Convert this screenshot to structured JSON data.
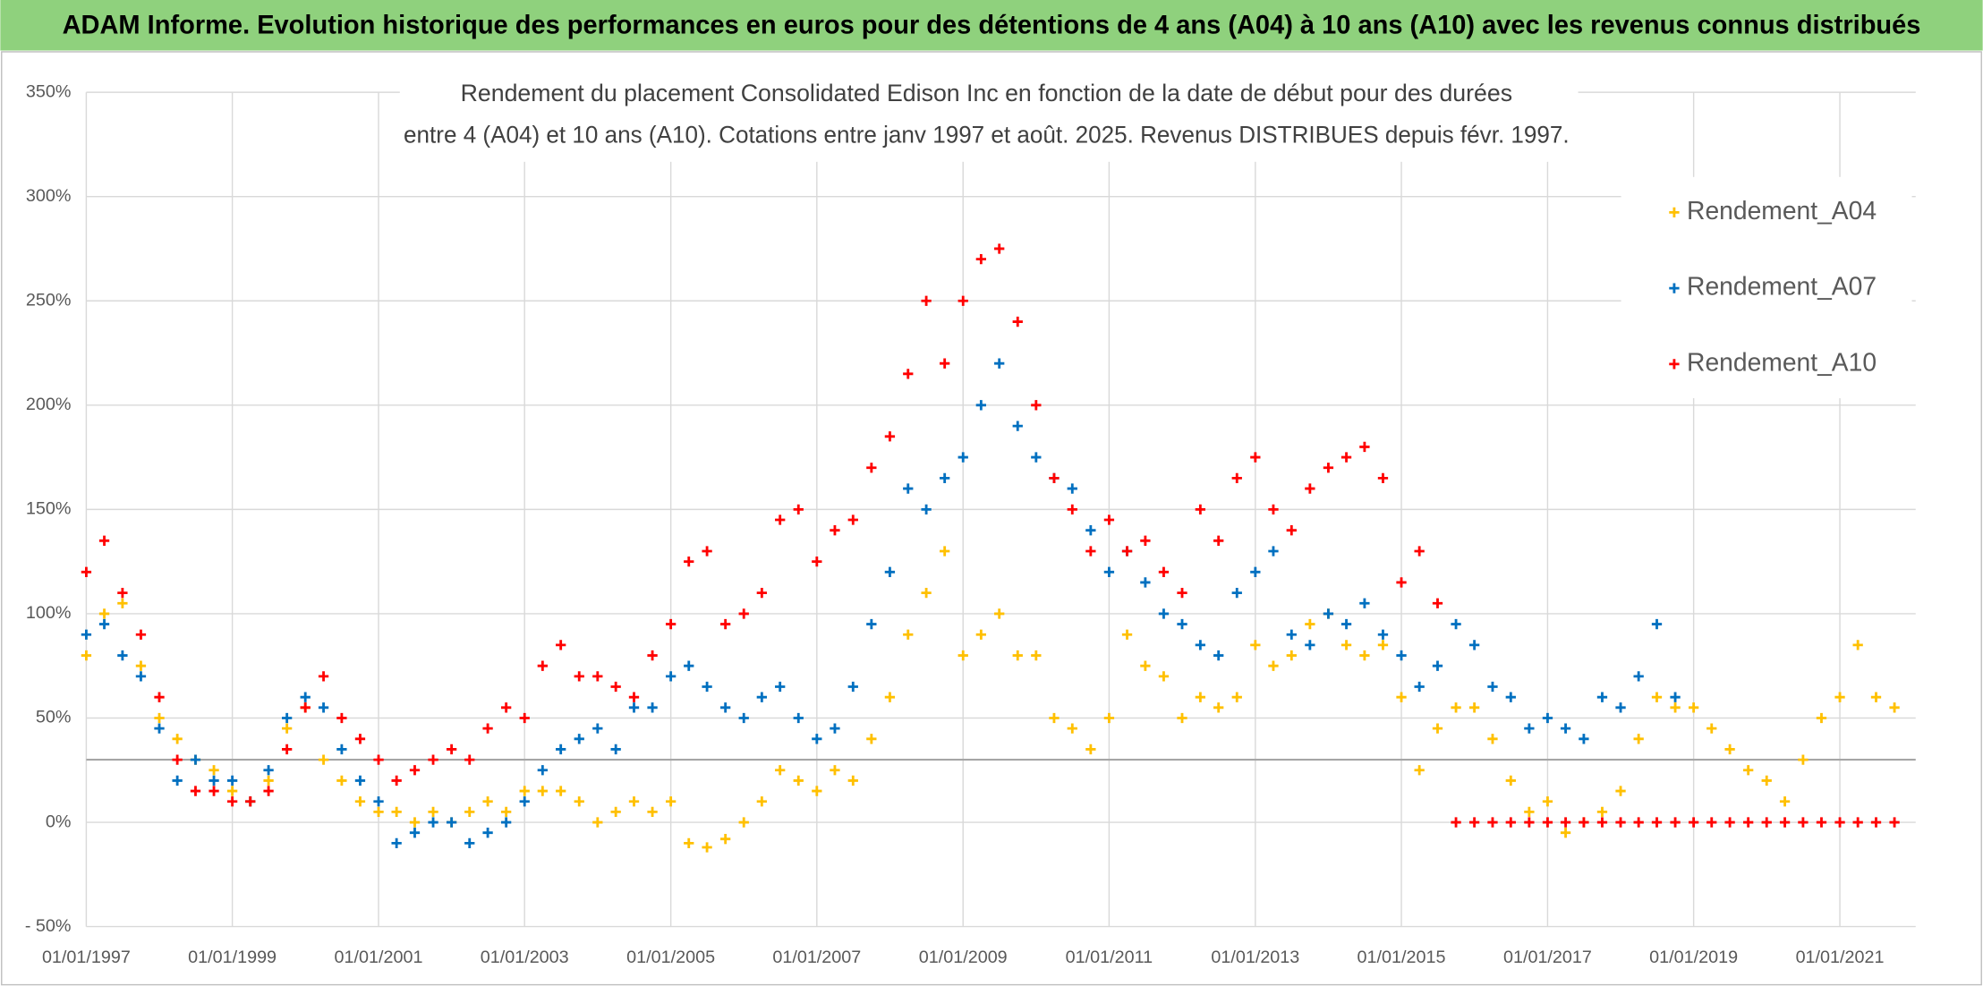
{
  "header": {
    "title": "ADAM Informe. Evolution historique des performances en euros pour des détentions de 4 ans (A04) à 10 ans (A10) avec les revenus connus distribués"
  },
  "chart_data": {
    "type": "scatter",
    "title": [
      "Rendement du placement Consolidated Edison Inc en fonction de la date de début pour des durées",
      "entre 4 (A04) et 10 ans (A10). Cotations entre janv 1997 et août. 2025. Revenus DISTRIBUES depuis févr. 1997."
    ],
    "x": [
      "1997-01-01",
      "1997-04-01",
      "1997-07-01",
      "1997-10-01",
      "1998-01-01",
      "1998-04-01",
      "1998-07-01",
      "1998-10-01",
      "1999-01-01",
      "1999-04-01",
      "1999-07-01",
      "1999-10-01",
      "2000-01-01",
      "2000-04-01",
      "2000-07-01",
      "2000-10-01",
      "2001-01-01",
      "2001-04-01",
      "2001-07-01",
      "2001-10-01",
      "2002-01-01",
      "2002-04-01",
      "2002-07-01",
      "2002-10-01",
      "2003-01-01",
      "2003-04-01",
      "2003-07-01",
      "2003-10-01",
      "2004-01-01",
      "2004-04-01",
      "2004-07-01",
      "2004-10-01",
      "2005-01-01",
      "2005-04-01",
      "2005-07-01",
      "2005-10-01",
      "2006-01-01",
      "2006-04-01",
      "2006-07-01",
      "2006-10-01",
      "2007-01-01",
      "2007-04-01",
      "2007-07-01",
      "2007-10-01",
      "2008-01-01",
      "2008-04-01",
      "2008-07-01",
      "2008-10-01",
      "2009-01-01",
      "2009-04-01",
      "2009-07-01",
      "2009-10-01",
      "2010-01-01",
      "2010-04-01",
      "2010-07-01",
      "2010-10-01",
      "2011-01-01",
      "2011-04-01",
      "2011-07-01",
      "2011-10-01",
      "2012-01-01",
      "2012-04-01",
      "2012-07-01",
      "2012-10-01",
      "2013-01-01",
      "2013-04-01",
      "2013-07-01",
      "2013-10-01",
      "2014-01-01",
      "2014-04-01",
      "2014-07-01",
      "2014-10-01",
      "2015-01-01",
      "2015-04-01",
      "2015-07-01",
      "2015-10-01",
      "2016-01-01",
      "2016-04-01",
      "2016-07-01",
      "2016-10-01",
      "2017-01-01",
      "2017-04-01",
      "2017-07-01",
      "2017-10-01",
      "2018-01-01",
      "2018-04-01",
      "2018-07-01",
      "2018-10-01",
      "2019-01-01",
      "2019-04-01",
      "2019-07-01",
      "2019-10-01",
      "2020-01-01",
      "2020-04-01",
      "2020-07-01",
      "2020-10-01",
      "2021-01-01",
      "2021-04-01",
      "2021-07-01",
      "2021-10-01"
    ],
    "series": [
      {
        "name": "Rendement_A04",
        "color": "#ffc000",
        "values": [
          80,
          100,
          105,
          75,
          50,
          40,
          30,
          25,
          15,
          10,
          20,
          45,
          55,
          30,
          20,
          10,
          5,
          5,
          0,
          5,
          0,
          5,
          10,
          5,
          15,
          15,
          15,
          10,
          0,
          5,
          10,
          5,
          10,
          -10,
          -12,
          -8,
          0,
          10,
          25,
          20,
          15,
          25,
          20,
          40,
          60,
          90,
          110,
          130,
          80,
          90,
          100,
          80,
          80,
          50,
          45,
          35,
          50,
          90,
          75,
          70,
          50,
          60,
          55,
          60,
          85,
          75,
          80,
          95,
          100,
          85,
          80,
          85,
          60,
          25,
          45,
          55,
          55,
          40,
          20,
          5,
          10,
          -5,
          0,
          5,
          15,
          40,
          60,
          55,
          55,
          45,
          35,
          25,
          20,
          10,
          30,
          50,
          60,
          85,
          60,
          55
        ]
      },
      {
        "name": "Rendement_A07",
        "color": "#0070c0",
        "values": [
          90,
          95,
          80,
          70,
          45,
          20,
          30,
          20,
          20,
          10,
          25,
          50,
          60,
          55,
          35,
          20,
          10,
          -10,
          -5,
          0,
          0,
          -10,
          -5,
          0,
          10,
          25,
          35,
          40,
          45,
          35,
          55,
          55,
          70,
          75,
          65,
          55,
          50,
          60,
          65,
          50,
          40,
          45,
          65,
          95,
          120,
          160,
          150,
          165,
          175,
          200,
          220,
          190,
          175,
          165,
          160,
          140,
          120,
          130,
          115,
          100,
          95,
          85,
          80,
          110,
          120,
          130,
          90,
          85,
          100,
          95,
          105,
          90,
          80,
          65,
          75,
          95,
          85,
          65,
          60,
          45,
          50,
          45,
          40,
          60,
          55,
          70,
          95,
          60,
          null,
          null,
          null,
          null,
          null,
          null,
          null,
          null,
          null,
          null,
          null,
          null
        ]
      },
      {
        "name": "Rendement_A10",
        "color": "#ff0000",
        "values": [
          120,
          135,
          110,
          90,
          60,
          30,
          15,
          15,
          10,
          10,
          15,
          35,
          55,
          70,
          50,
          40,
          30,
          20,
          25,
          30,
          35,
          30,
          45,
          55,
          50,
          75,
          85,
          70,
          70,
          65,
          60,
          80,
          95,
          125,
          130,
          95,
          100,
          110,
          145,
          150,
          125,
          140,
          145,
          170,
          185,
          215,
          250,
          220,
          250,
          270,
          275,
          240,
          200,
          165,
          150,
          130,
          145,
          130,
          135,
          120,
          110,
          150,
          135,
          165,
          175,
          150,
          140,
          160,
          170,
          175,
          180,
          165,
          115,
          130,
          105,
          0,
          0,
          0,
          0,
          0,
          0,
          0,
          0,
          0,
          0,
          0,
          0,
          0,
          0,
          0,
          0,
          0,
          0,
          0,
          0,
          0,
          0,
          0,
          0,
          0
        ]
      }
    ],
    "xlim": [
      "1997-01-01",
      "2022-01-15"
    ],
    "xticks": [
      {
        "value": "1997-01-01",
        "label": "01/01/1997"
      },
      {
        "value": "1999-01-01",
        "label": "01/01/1999"
      },
      {
        "value": "2001-01-01",
        "label": "01/01/2001"
      },
      {
        "value": "2003-01-01",
        "label": "01/01/2003"
      },
      {
        "value": "2005-01-01",
        "label": "01/01/2005"
      },
      {
        "value": "2007-01-01",
        "label": "01/01/2007"
      },
      {
        "value": "2009-01-01",
        "label": "01/01/2009"
      },
      {
        "value": "2011-01-01",
        "label": "01/01/2011"
      },
      {
        "value": "2013-01-01",
        "label": "01/01/2013"
      },
      {
        "value": "2015-01-01",
        "label": "01/01/2015"
      },
      {
        "value": "2017-01-01",
        "label": "01/01/2017"
      },
      {
        "value": "2019-01-01",
        "label": "01/01/2019"
      },
      {
        "value": "2021-01-01",
        "label": "01/01/2021"
      }
    ],
    "ylim": [
      -50,
      350
    ],
    "yticks": [
      {
        "value": -50,
        "label": "- 50%"
      },
      {
        "value": 0,
        "label": "0%"
      },
      {
        "value": 50,
        "label": "50%"
      },
      {
        "value": 100,
        "label": "100%"
      },
      {
        "value": 150,
        "label": "150%"
      },
      {
        "value": 200,
        "label": "200%"
      },
      {
        "value": 250,
        "label": "250%"
      },
      {
        "value": 300,
        "label": "300%"
      },
      {
        "value": 350,
        "label": "350%"
      }
    ],
    "hline": 30,
    "grid": true,
    "legend": "upper right"
  }
}
